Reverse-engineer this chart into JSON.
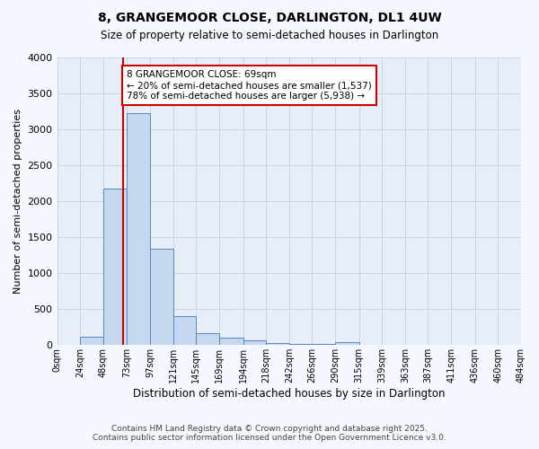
{
  "title": "8, GRANGEMOOR CLOSE, DARLINGTON, DL1 4UW",
  "subtitle": "Size of property relative to semi-detached houses in Darlington",
  "xlabel": "Distribution of semi-detached houses by size in Darlington",
  "ylabel": "Number of semi-detached properties",
  "footer_line1": "Contains HM Land Registry data © Crown copyright and database right 2025.",
  "footer_line2": "Contains public sector information licensed under the Open Government Licence v3.0.",
  "bin_labels": [
    "0sqm",
    "24sqm",
    "48sqm",
    "73sqm",
    "97sqm",
    "121sqm",
    "145sqm",
    "169sqm",
    "194sqm",
    "218sqm",
    "242sqm",
    "266sqm",
    "290sqm",
    "315sqm",
    "339sqm",
    "363sqm",
    "387sqm",
    "411sqm",
    "436sqm",
    "460sqm",
    "484sqm"
  ],
  "bin_edges": [
    0,
    24,
    48,
    73,
    97,
    121,
    145,
    169,
    194,
    218,
    242,
    266,
    290,
    315,
    339,
    363,
    387,
    411,
    436,
    460,
    484
  ],
  "bar_values": [
    0,
    120,
    2180,
    3230,
    1340,
    400,
    160,
    100,
    60,
    30,
    20,
    10,
    40,
    0,
    0,
    0,
    0,
    0,
    0,
    0
  ],
  "bar_color": "#c5d8f0",
  "bar_edge_color": "#5588bb",
  "property_size": 69,
  "red_line_x": 69,
  "annotation_title": "8 GRANGEMOOR CLOSE: 69sqm",
  "annotation_line1": "← 20% of semi-detached houses are smaller (1,537)",
  "annotation_line2": "78% of semi-detached houses are larger (5,938) →",
  "annotation_box_color": "#ffffff",
  "annotation_border_color": "#cc0000",
  "red_line_color": "#cc0000",
  "grid_color": "#c8d4e8",
  "plot_background_color": "#e8eef8",
  "figure_background_color": "#f5f8ff",
  "ylim": [
    0,
    4000
  ],
  "yticks": [
    0,
    500,
    1000,
    1500,
    2000,
    2500,
    3000,
    3500,
    4000
  ]
}
